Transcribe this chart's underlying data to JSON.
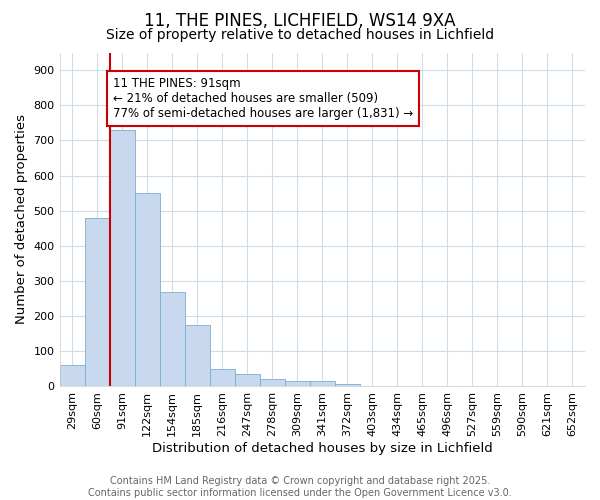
{
  "title": "11, THE PINES, LICHFIELD, WS14 9XA",
  "subtitle": "Size of property relative to detached houses in Lichfield",
  "xlabel": "Distribution of detached houses by size in Lichfield",
  "ylabel": "Number of detached properties",
  "categories": [
    "29sqm",
    "60sqm",
    "91sqm",
    "122sqm",
    "154sqm",
    "185sqm",
    "216sqm",
    "247sqm",
    "278sqm",
    "309sqm",
    "341sqm",
    "372sqm",
    "403sqm",
    "434sqm",
    "465sqm",
    "496sqm",
    "527sqm",
    "559sqm",
    "590sqm",
    "621sqm",
    "652sqm"
  ],
  "values": [
    60,
    480,
    730,
    550,
    270,
    175,
    50,
    35,
    20,
    15,
    15,
    8,
    0,
    0,
    0,
    0,
    0,
    0,
    0,
    0,
    0
  ],
  "bar_color": "#c8d8ee",
  "bar_edge_color": "#7aaed0",
  "bar_width": 1.0,
  "vline_x_idx": 2,
  "vline_color": "#cc0000",
  "ylim": [
    0,
    950
  ],
  "yticks": [
    0,
    100,
    200,
    300,
    400,
    500,
    600,
    700,
    800,
    900
  ],
  "annotation_text": "11 THE PINES: 91sqm\n← 21% of detached houses are smaller (509)\n77% of semi-detached houses are larger (1,831) →",
  "annotation_box_edgecolor": "#cc0000",
  "footer_line1": "Contains HM Land Registry data © Crown copyright and database right 2025.",
  "footer_line2": "Contains public sector information licensed under the Open Government Licence v3.0.",
  "background_color": "#ffffff",
  "plot_bg_color": "#ffffff",
  "grid_color": "#d0dce8",
  "title_fontsize": 12,
  "subtitle_fontsize": 10,
  "axis_label_fontsize": 9.5,
  "tick_fontsize": 8,
  "annotation_fontsize": 8.5,
  "footer_fontsize": 7
}
